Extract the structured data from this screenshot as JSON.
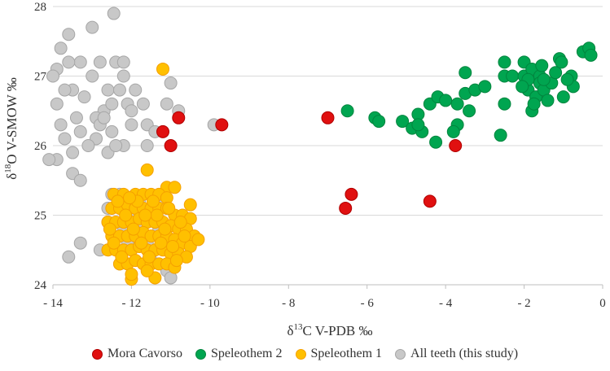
{
  "chart_data": {
    "type": "scatter",
    "xlabel": {
      "pre": "δ",
      "sup": "13",
      "post": "C V-PDB ‰"
    },
    "ylabel": {
      "pre": "δ",
      "sup": "18",
      "post": "O V-SMOW ‰"
    },
    "xlim": [
      -14,
      0
    ],
    "ylim": [
      24,
      28
    ],
    "xticks": [
      "-14",
      "-12",
      "-10",
      "-8",
      "-6",
      "-4",
      "-2",
      "0"
    ],
    "yticks": [
      "24",
      "25",
      "26",
      "27",
      "28"
    ],
    "grid": "horizontal",
    "legend_position": "bottom",
    "series": [
      {
        "name": "All teeth (this study)",
        "color": "#c8c8c8",
        "edge": "#a6a6a6",
        "points": [
          [
            -12.45,
            27.9
          ],
          [
            -13.0,
            27.7
          ],
          [
            -13.6,
            27.6
          ],
          [
            -13.8,
            27.4
          ],
          [
            -12.8,
            27.2
          ],
          [
            -12.4,
            27.2
          ],
          [
            -12.2,
            27.2
          ],
          [
            -13.3,
            27.2
          ],
          [
            -13.9,
            27.1
          ],
          [
            -14.0,
            27.0
          ],
          [
            -13.6,
            27.2
          ],
          [
            -13.0,
            27.0
          ],
          [
            -12.2,
            27.0
          ],
          [
            -13.5,
            26.8
          ],
          [
            -13.2,
            26.7
          ],
          [
            -12.6,
            26.8
          ],
          [
            -12.3,
            26.8
          ],
          [
            -11.9,
            26.8
          ],
          [
            -12.1,
            26.6
          ],
          [
            -13.9,
            26.6
          ],
          [
            -13.4,
            26.4
          ],
          [
            -12.7,
            26.5
          ],
          [
            -11.7,
            26.6
          ],
          [
            -11.0,
            26.9
          ],
          [
            -11.1,
            26.6
          ],
          [
            -10.8,
            26.5
          ],
          [
            -13.3,
            26.2
          ],
          [
            -13.8,
            26.3
          ],
          [
            -12.5,
            26.2
          ],
          [
            -12.0,
            26.3
          ],
          [
            -11.6,
            26.3
          ],
          [
            -11.4,
            26.2
          ],
          [
            -13.7,
            26.1
          ],
          [
            -12.9,
            26.1
          ],
          [
            -12.2,
            26.0
          ],
          [
            -13.9,
            25.8
          ],
          [
            -13.5,
            25.9
          ],
          [
            -12.6,
            25.9
          ],
          [
            -12.4,
            26.0
          ],
          [
            -11.6,
            26.0
          ],
          [
            -13.5,
            25.6
          ],
          [
            -13.3,
            25.5
          ],
          [
            -12.9,
            26.4
          ],
          [
            -13.1,
            26.0
          ],
          [
            -13.7,
            26.8
          ],
          [
            -12.5,
            26.6
          ],
          [
            -12.0,
            26.5
          ],
          [
            -9.9,
            26.3
          ],
          [
            -12.8,
            26.3
          ],
          [
            -14.1,
            25.8
          ],
          [
            -12.7,
            26.4
          ],
          [
            -12.5,
            25.3
          ],
          [
            -12.3,
            25.3
          ],
          [
            -12.6,
            25.1
          ],
          [
            -11.8,
            25.2
          ],
          [
            -11.3,
            25.2
          ],
          [
            -12.0,
            25.0
          ],
          [
            -12.6,
            24.9
          ],
          [
            -12.2,
            24.8
          ],
          [
            -11.7,
            24.9
          ],
          [
            -11.3,
            24.8
          ],
          [
            -11.6,
            24.6
          ],
          [
            -12.8,
            24.5
          ],
          [
            -12.3,
            24.3
          ],
          [
            -11.5,
            24.35
          ],
          [
            -11.1,
            24.2
          ],
          [
            -11.0,
            24.1
          ],
          [
            -13.3,
            24.6
          ],
          [
            -13.6,
            24.4
          ],
          [
            -10.9,
            24.4
          ],
          [
            -12.1,
            24.6
          ]
        ]
      },
      {
        "name": "Speleothem 1",
        "color": "#ffc000",
        "edge": "#f5a000",
        "points": [
          [
            -11.2,
            27.1
          ],
          [
            -11.6,
            25.65
          ],
          [
            -11.1,
            25.4
          ],
          [
            -10.9,
            25.4
          ],
          [
            -10.5,
            25.15
          ],
          [
            -12.0,
            24.08
          ],
          [
            -11.4,
            24.1
          ],
          [
            -12.45,
            25.3
          ],
          [
            -12.2,
            25.3
          ],
          [
            -11.9,
            25.3
          ],
          [
            -11.7,
            25.3
          ],
          [
            -11.5,
            25.3
          ],
          [
            -11.3,
            25.3
          ],
          [
            -11.1,
            25.25
          ],
          [
            -12.5,
            25.1
          ],
          [
            -12.3,
            25.1
          ],
          [
            -12.1,
            25.15
          ],
          [
            -11.9,
            25.1
          ],
          [
            -11.7,
            25.1
          ],
          [
            -11.5,
            25.1
          ],
          [
            -11.3,
            25.1
          ],
          [
            -11.1,
            25.1
          ],
          [
            -10.9,
            25.0
          ],
          [
            -10.7,
            25.0
          ],
          [
            -10.5,
            24.95
          ],
          [
            -12.6,
            24.9
          ],
          [
            -12.4,
            24.9
          ],
          [
            -12.2,
            24.9
          ],
          [
            -12.0,
            24.9
          ],
          [
            -11.8,
            24.95
          ],
          [
            -11.6,
            24.9
          ],
          [
            -11.4,
            24.9
          ],
          [
            -11.2,
            24.9
          ],
          [
            -11.0,
            24.85
          ],
          [
            -10.8,
            24.8
          ],
          [
            -10.6,
            24.8
          ],
          [
            -10.4,
            24.7
          ],
          [
            -12.5,
            24.7
          ],
          [
            -12.3,
            24.7
          ],
          [
            -12.1,
            24.7
          ],
          [
            -11.9,
            24.7
          ],
          [
            -11.7,
            24.75
          ],
          [
            -11.5,
            24.7
          ],
          [
            -11.3,
            24.7
          ],
          [
            -11.1,
            24.7
          ],
          [
            -10.9,
            24.65
          ],
          [
            -10.7,
            24.6
          ],
          [
            -10.5,
            24.55
          ],
          [
            -10.3,
            24.65
          ],
          [
            -12.6,
            24.5
          ],
          [
            -12.4,
            24.5
          ],
          [
            -12.2,
            24.5
          ],
          [
            -12.0,
            24.5
          ],
          [
            -11.8,
            24.55
          ],
          [
            -11.6,
            24.5
          ],
          [
            -11.4,
            24.5
          ],
          [
            -11.2,
            24.5
          ],
          [
            -11.0,
            24.45
          ],
          [
            -10.8,
            24.45
          ],
          [
            -10.6,
            24.4
          ],
          [
            -12.3,
            24.3
          ],
          [
            -12.1,
            24.3
          ],
          [
            -11.9,
            24.35
          ],
          [
            -11.7,
            24.3
          ],
          [
            -11.5,
            24.3
          ],
          [
            -11.3,
            24.3
          ],
          [
            -11.1,
            24.3
          ],
          [
            -10.9,
            24.25
          ],
          [
            -12.0,
            24.15
          ],
          [
            -11.6,
            24.2
          ],
          [
            -12.35,
            25.2
          ],
          [
            -12.15,
            25.0
          ],
          [
            -11.95,
            24.8
          ],
          [
            -11.75,
            24.6
          ],
          [
            -11.55,
            24.4
          ],
          [
            -11.35,
            25.0
          ],
          [
            -11.15,
            24.8
          ],
          [
            -10.95,
            24.55
          ],
          [
            -10.75,
            24.9
          ],
          [
            -12.45,
            24.6
          ],
          [
            -12.25,
            24.4
          ],
          [
            -11.85,
            25.2
          ],
          [
            -11.45,
            25.2
          ],
          [
            -10.65,
            24.7
          ],
          [
            -11.05,
            25.1
          ],
          [
            -12.05,
            25.25
          ],
          [
            -11.65,
            25.0
          ],
          [
            -11.25,
            24.6
          ],
          [
            -10.85,
            24.35
          ],
          [
            -12.55,
            24.8
          ]
        ]
      },
      {
        "name": "Speleothem 2",
        "color": "#00a550",
        "edge": "#00853e",
        "points": [
          [
            -6.5,
            26.5
          ],
          [
            -5.8,
            26.4
          ],
          [
            -5.7,
            26.35
          ],
          [
            -5.1,
            26.35
          ],
          [
            -4.85,
            26.25
          ],
          [
            -4.7,
            26.45
          ],
          [
            -4.6,
            26.2
          ],
          [
            -4.7,
            26.3
          ],
          [
            -4.4,
            26.6
          ],
          [
            -4.25,
            26.05
          ],
          [
            -4.2,
            26.7
          ],
          [
            -4.0,
            26.65
          ],
          [
            -3.7,
            26.3
          ],
          [
            -3.8,
            26.2
          ],
          [
            -3.7,
            26.6
          ],
          [
            -3.5,
            26.75
          ],
          [
            -3.5,
            27.05
          ],
          [
            -3.4,
            26.5
          ],
          [
            -3.25,
            26.8
          ],
          [
            -3.0,
            26.85
          ],
          [
            -2.6,
            26.15
          ],
          [
            -2.5,
            26.6
          ],
          [
            -2.5,
            27.2
          ],
          [
            -2.5,
            27.0
          ],
          [
            -2.3,
            27.0
          ],
          [
            -2.0,
            27.2
          ],
          [
            -2.0,
            27.0
          ],
          [
            -1.9,
            26.8
          ],
          [
            -1.8,
            27.1
          ],
          [
            -1.8,
            26.5
          ],
          [
            -1.7,
            26.7
          ],
          [
            -1.6,
            27.0
          ],
          [
            -1.55,
            27.15
          ],
          [
            -1.6,
            26.9
          ],
          [
            -1.5,
            26.8
          ],
          [
            -1.4,
            26.65
          ],
          [
            -1.3,
            26.9
          ],
          [
            -1.2,
            27.05
          ],
          [
            -1.1,
            27.25
          ],
          [
            -1.0,
            26.7
          ],
          [
            -0.8,
            27.0
          ],
          [
            -0.75,
            26.85
          ],
          [
            -0.5,
            27.35
          ],
          [
            -0.35,
            27.4
          ],
          [
            -0.3,
            27.3
          ],
          [
            -1.9,
            26.95
          ],
          [
            -2.05,
            26.85
          ],
          [
            -1.75,
            26.6
          ],
          [
            -1.5,
            26.95
          ],
          [
            -1.05,
            27.2
          ],
          [
            -0.9,
            26.95
          ]
        ]
      },
      {
        "name": "Mora Cavorso",
        "color": "#e01010",
        "edge": "#b00000",
        "points": [
          [
            -11.2,
            26.2
          ],
          [
            -10.8,
            26.4
          ],
          [
            -11.0,
            26.0
          ],
          [
            -9.7,
            26.3
          ],
          [
            -7.0,
            26.4
          ],
          [
            -6.4,
            25.3
          ],
          [
            -6.55,
            25.1
          ],
          [
            -4.4,
            25.2
          ],
          [
            -3.75,
            26.0
          ]
        ]
      }
    ],
    "legend_order": [
      "Mora Cavorso",
      "Speleothem 2",
      "Speleothem 1",
      "All teeth (this study)"
    ]
  }
}
